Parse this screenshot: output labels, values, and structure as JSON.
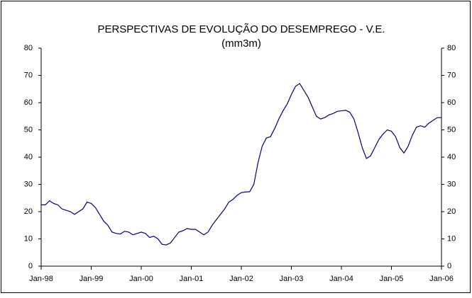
{
  "chart_data": {
    "type": "line",
    "title": "PERSPECTIVAS DE EVOLUÇÃO DO DESEMPREGO - V.E.",
    "subtitle": "(mm3m)",
    "categories": [
      "Jan-98",
      null,
      null,
      null,
      null,
      null,
      null,
      null,
      null,
      null,
      null,
      null,
      "Jan-99",
      null,
      null,
      null,
      null,
      null,
      null,
      null,
      null,
      null,
      null,
      null,
      "Jan-00",
      null,
      null,
      null,
      null,
      null,
      null,
      null,
      null,
      null,
      null,
      null,
      "Jan-01",
      null,
      null,
      null,
      null,
      null,
      null,
      null,
      null,
      null,
      null,
      null,
      "Jan-02",
      null,
      null,
      null,
      null,
      null,
      null,
      null,
      null,
      null,
      null,
      null,
      "Jan-03",
      null,
      null,
      null,
      null,
      null,
      null,
      null,
      null,
      null,
      null,
      null,
      "Jan-04",
      null,
      null,
      null,
      null,
      null,
      null,
      null,
      null,
      null,
      null,
      null,
      "Jan-05",
      null,
      null,
      null,
      null,
      null,
      null,
      null,
      null,
      null,
      null,
      null,
      "Jan-06"
    ],
    "values": [
      22.5,
      22.5,
      24,
      23,
      22.5,
      21,
      20.5,
      20,
      19,
      20,
      21,
      23.5,
      23,
      21.5,
      19,
      16.5,
      15,
      12.5,
      12,
      11.8,
      12.8,
      12.5,
      11.5,
      12,
      12.5,
      12,
      10.5,
      11,
      10,
      8,
      7.8,
      8.5,
      10.5,
      12.5,
      13,
      13.8,
      13.5,
      13.5,
      12.5,
      11.5,
      12.5,
      15,
      17,
      19,
      21,
      23.5,
      24.5,
      26,
      27,
      27.2,
      27.3,
      30,
      38,
      44,
      47,
      47.5,
      50.5,
      54,
      57,
      59.5,
      63,
      66,
      67,
      64.5,
      62,
      58.5,
      55,
      54,
      54.5,
      55.5,
      56,
      56.8,
      57,
      57.2,
      56.5,
      54,
      49,
      43.5,
      39.5,
      40.5,
      43.5,
      46.5,
      48.5,
      50,
      49.5,
      47.5,
      43.5,
      41.5,
      44,
      48,
      51,
      51.5,
      51,
      52.5,
      53.5,
      54.5,
      54.5
    ],
    "color": "#000080",
    "ylim": [
      0,
      80
    ],
    "yticks": [
      0,
      10,
      20,
      30,
      40,
      50,
      60,
      70,
      80
    ],
    "y2lim": [
      0,
      80
    ],
    "y2ticks": [
      0,
      10,
      20,
      30,
      40,
      50,
      60,
      70,
      80
    ],
    "grid": false
  }
}
